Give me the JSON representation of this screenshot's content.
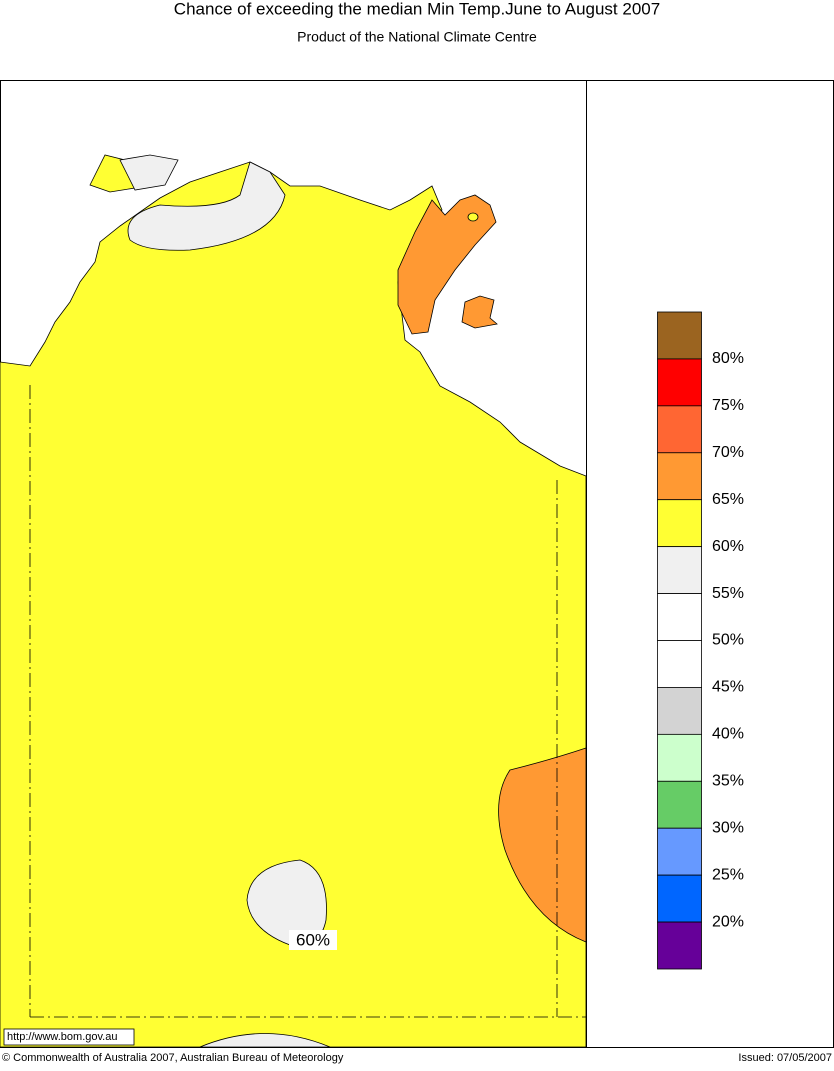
{
  "header": {
    "title": "Chance of exceeding the median Min Temp.June to August 2007",
    "subtitle": "Product of the National Climate Centre"
  },
  "legend": {
    "colors": [
      "#9b6420",
      "#ff0000",
      "#ff6633",
      "#ff9933",
      "#ffff33",
      "#f0f0f0",
      "#ffffff",
      "#ffffff",
      "#d3d3d3",
      "#ccffcc",
      "#66cc66",
      "#6699ff",
      "#0066ff",
      "#660099"
    ],
    "labels": [
      "80%",
      "75%",
      "70%",
      "65%",
      "60%",
      "55%",
      "50%",
      "45%",
      "40%",
      "35%",
      "30%",
      "25%",
      "20%"
    ]
  },
  "map": {
    "labels": [
      "60%"
    ]
  },
  "footer": {
    "url": "http://www.bom.gov.au",
    "copyright": "© Commonwealth of Australia 2007, Australian Bureau of Meteorology",
    "issued": "Issued: 07/05/2007"
  }
}
